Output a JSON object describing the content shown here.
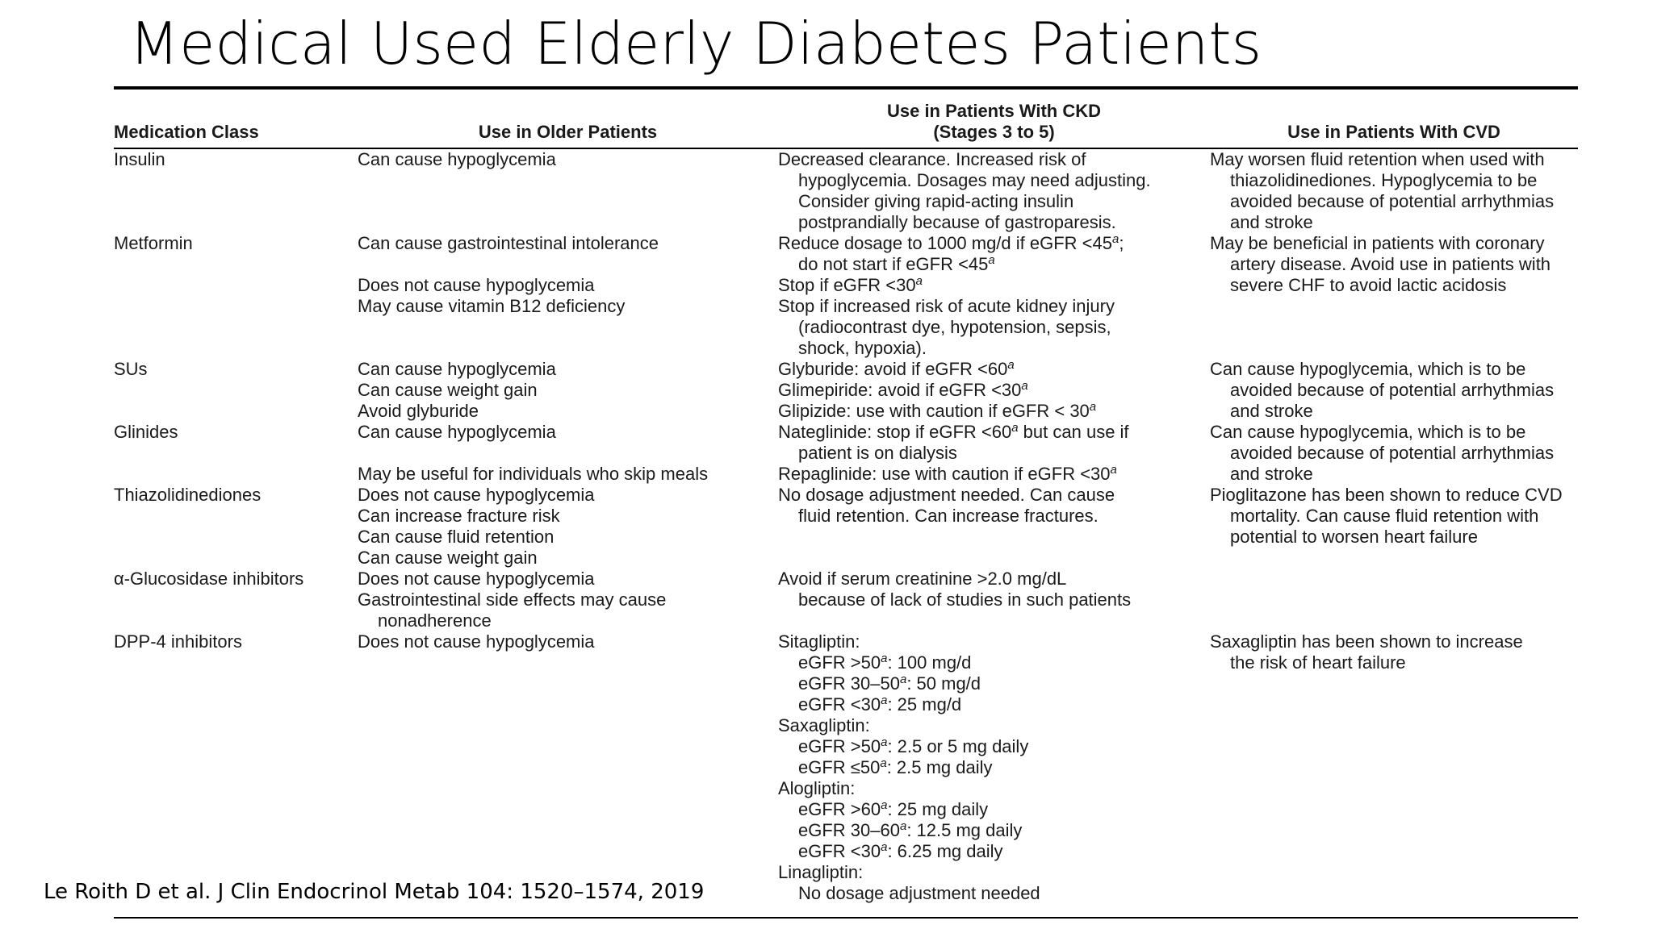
{
  "slide": {
    "title": "Medical Used Elderly Diabetes Patients",
    "citation": "Le Roith D et al. J Clin Endocrinol Metab 104: 1520–1574, 2019"
  },
  "table": {
    "headers": {
      "col1": "Medication Class",
      "col2": "Use in Older Patients",
      "col3_line1": "Use in Patients With CKD",
      "col3_line2": "(Stages 3 to 5)",
      "col4": "Use in Patients With CVD"
    },
    "rows": [
      {
        "medication_class": [
          "Insulin"
        ],
        "older": [
          "Can cause hypoglycemia"
        ],
        "ckd": [
          "Decreased clearance. Increased risk of",
          "hypoglycemia. Dosages may need adjusting.",
          "Consider giving rapid-acting insulin",
          "postprandially because of gastroparesis."
        ],
        "cvd": [
          "May worsen fluid retention when used with",
          "thiazolidinediones. Hypoglycemia to be",
          "avoided because of potential arrhythmias",
          "and stroke"
        ]
      },
      {
        "medication_class": [
          "Metformin"
        ],
        "older": [
          "Can cause gastrointestinal intolerance",
          "",
          "Does not cause hypoglycemia",
          "May cause vitamin B12 deficiency"
        ],
        "ckd": [
          "Reduce dosage to 1000 mg/d if eGFR <45",
          "a",
          ";",
          "do not start if eGFR <45",
          "a",
          "Stop if eGFR <30",
          "a",
          "Stop if increased risk of acute kidney injury",
          "(radiocontrast dye, hypotension, sepsis,",
          "shock, hypoxia)."
        ],
        "cvd": [
          "May be beneficial in patients with coronary",
          "artery disease. Avoid use in patients with",
          "severe CHF to avoid lactic acidosis"
        ]
      },
      {
        "medication_class": [
          "SUs"
        ],
        "older": [
          "Can cause hypoglycemia",
          "Can cause weight gain",
          "Avoid glyburide"
        ],
        "ckd": [
          "Glyburide: avoid if eGFR <60",
          "Glimepiride: avoid if eGFR <30",
          "Glipizide: use with caution if eGFR < 30"
        ],
        "cvd": [
          "Can cause hypoglycemia, which is to be",
          "avoided because of potential arrhythmias",
          "and stroke"
        ]
      },
      {
        "medication_class": [
          "Glinides"
        ],
        "older": [
          "Can cause hypoglycemia",
          "",
          "May be useful for individuals who skip meals"
        ],
        "ckd": [
          "Nateglinide: stop if eGFR <60",
          " but can use if",
          "patient is on dialysis",
          "Repaglinide: use with caution if eGFR <30"
        ],
        "cvd": [
          "Can cause hypoglycemia, which is to be",
          "avoided because of potential arrhythmias",
          "and stroke"
        ]
      },
      {
        "medication_class": [
          "Thiazolidinediones"
        ],
        "older": [
          "Does not cause hypoglycemia",
          "Can increase fracture risk",
          "Can cause fluid retention",
          "Can cause weight gain"
        ],
        "ckd": [
          "No dosage adjustment needed. Can cause",
          "fluid retention. Can increase fractures."
        ],
        "cvd": [
          "Pioglitazone has been shown to reduce CVD",
          "mortality. Can cause fluid retention with",
          "potential to worsen heart failure"
        ]
      },
      {
        "medication_class": [
          "α-Glucosidase inhibitors"
        ],
        "older": [
          "Does not cause hypoglycemia",
          "Gastrointestinal side effects may cause",
          "nonadherence"
        ],
        "ckd": [
          "Avoid if serum creatinine >2.0 mg/dL",
          "because of lack of studies in such patients"
        ],
        "cvd": []
      },
      {
        "medication_class": [
          "DPP-4 inhibitors"
        ],
        "older": [
          "Does not cause hypoglycemia"
        ],
        "ckd": [
          "Sitagliptin:",
          "eGFR >50",
          ": 100 mg/d",
          "eGFR 30–50",
          ": 50 mg/d",
          "eGFR <30",
          ": 25 mg/d",
          "Saxagliptin:",
          ": 2.5 or 5 mg daily",
          "eGFR ≤50",
          ": 2.5 mg daily",
          "Alogliptin:",
          "eGFR >60",
          ": 25 mg daily",
          "eGFR 30–60",
          ": 12.5 mg daily",
          ": 6.25 mg daily",
          "Linagliptin:",
          "No dosage adjustment needed"
        ],
        "cvd": [
          "Saxagliptin has been shown to increase",
          "the risk of heart failure"
        ]
      }
    ]
  }
}
